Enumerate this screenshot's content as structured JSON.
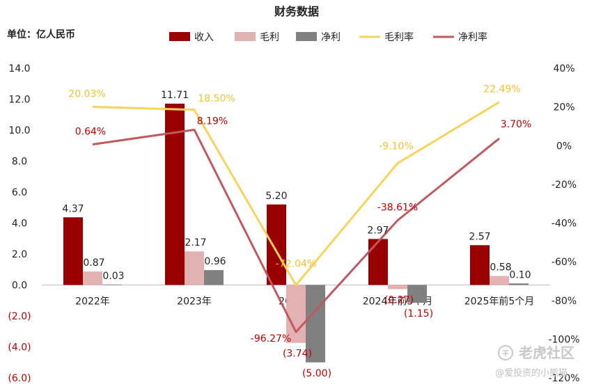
{
  "chart_data": {
    "type": "bar",
    "title": "财务数据",
    "unit_label": "单位：亿人民币",
    "categories": [
      "2022年",
      "2023年",
      "2024年",
      "2024年前5个月",
      "2025年前5个月"
    ],
    "left_axis": {
      "ylim": [
        -6,
        14
      ],
      "ticks": [
        14,
        12,
        10,
        8,
        6,
        4,
        2,
        0,
        -2,
        -4,
        -6
      ],
      "tick_labels": [
        "14.0",
        "12.0",
        "10.0",
        "8.0",
        "6.0",
        "4.0",
        "2.0",
        "0.0",
        "(2.0)",
        "(4.0)",
        "(6.0)"
      ]
    },
    "right_axis": {
      "ylim": [
        -120,
        40
      ],
      "ticks": [
        40,
        20,
        0,
        -20,
        -40,
        -60,
        -80,
        -100,
        -120
      ],
      "tick_labels": [
        "40%",
        "20%",
        "0%",
        "-20%",
        "-40%",
        "-60%",
        "-80%",
        "-100%",
        "-120%"
      ]
    },
    "legend_position": "top",
    "series": [
      {
        "name": "收入",
        "kind": "bar",
        "color": "#9b0000",
        "values": [
          4.37,
          11.71,
          5.2,
          2.97,
          2.57
        ],
        "labels": [
          "4.37",
          "11.71",
          "5.20",
          "2.97",
          "2.57"
        ]
      },
      {
        "name": "毛利",
        "kind": "bar",
        "color": "#e3b1b1",
        "values": [
          0.87,
          2.17,
          -3.74,
          -0.27,
          0.58
        ],
        "labels": [
          "0.87",
          "2.17",
          "(3.74)",
          "(0.27)",
          "0.58"
        ]
      },
      {
        "name": "净利",
        "kind": "bar",
        "color": "#808080",
        "values": [
          0.03,
          0.96,
          -5.0,
          -1.15,
          0.1
        ],
        "labels": [
          "0.03",
          "0.96",
          "(5.00)",
          "(1.15)",
          "0.10"
        ]
      },
      {
        "name": "毛利率",
        "kind": "line",
        "axis": "right",
        "color": "#f7d35c",
        "values": [
          20.03,
          18.5,
          -72.04,
          -9.1,
          22.49
        ],
        "labels": [
          "20.03%",
          "18.50%",
          "-72.04%",
          "-9.10%",
          "22.49%"
        ]
      },
      {
        "name": "净利率",
        "kind": "line",
        "axis": "right",
        "color": "#c0595d",
        "values": [
          0.64,
          8.19,
          -96.27,
          -38.61,
          3.7
        ],
        "labels": [
          "0.64%",
          "8.19%",
          "-96.27%",
          "-38.61%",
          "3.70%"
        ]
      }
    ]
  },
  "watermark": {
    "brand": "老虎社区",
    "author": "@爱投资的小熊猫"
  }
}
